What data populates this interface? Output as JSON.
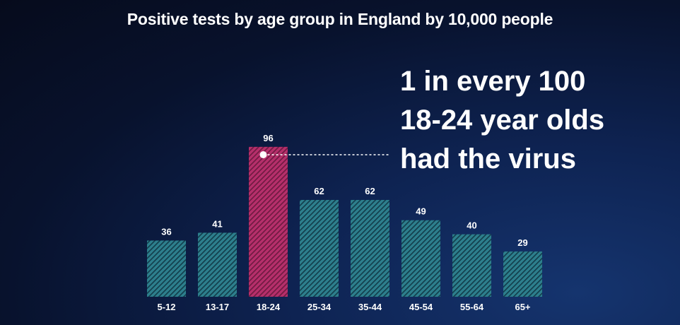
{
  "chart_data": {
    "type": "bar",
    "title": "Positive tests by age group in England by 10,000 people",
    "categories": [
      "5-12",
      "13-17",
      "18-24",
      "25-34",
      "35-44",
      "45-54",
      "55-64",
      "65+"
    ],
    "values": [
      36,
      41,
      96,
      62,
      62,
      49,
      40,
      29
    ],
    "highlight_index": 2,
    "annotation_lines": [
      "1 in every 100",
      "18-24 year olds",
      "had the virus"
    ],
    "ylim": [
      0,
      100
    ],
    "grid": false,
    "colors": {
      "bar": "#2d7f8d",
      "bar_stripe": "#123c4a",
      "highlight": "#b62f6b",
      "highlight_stripe": "#6d1a40",
      "text": "#ffffff"
    }
  }
}
